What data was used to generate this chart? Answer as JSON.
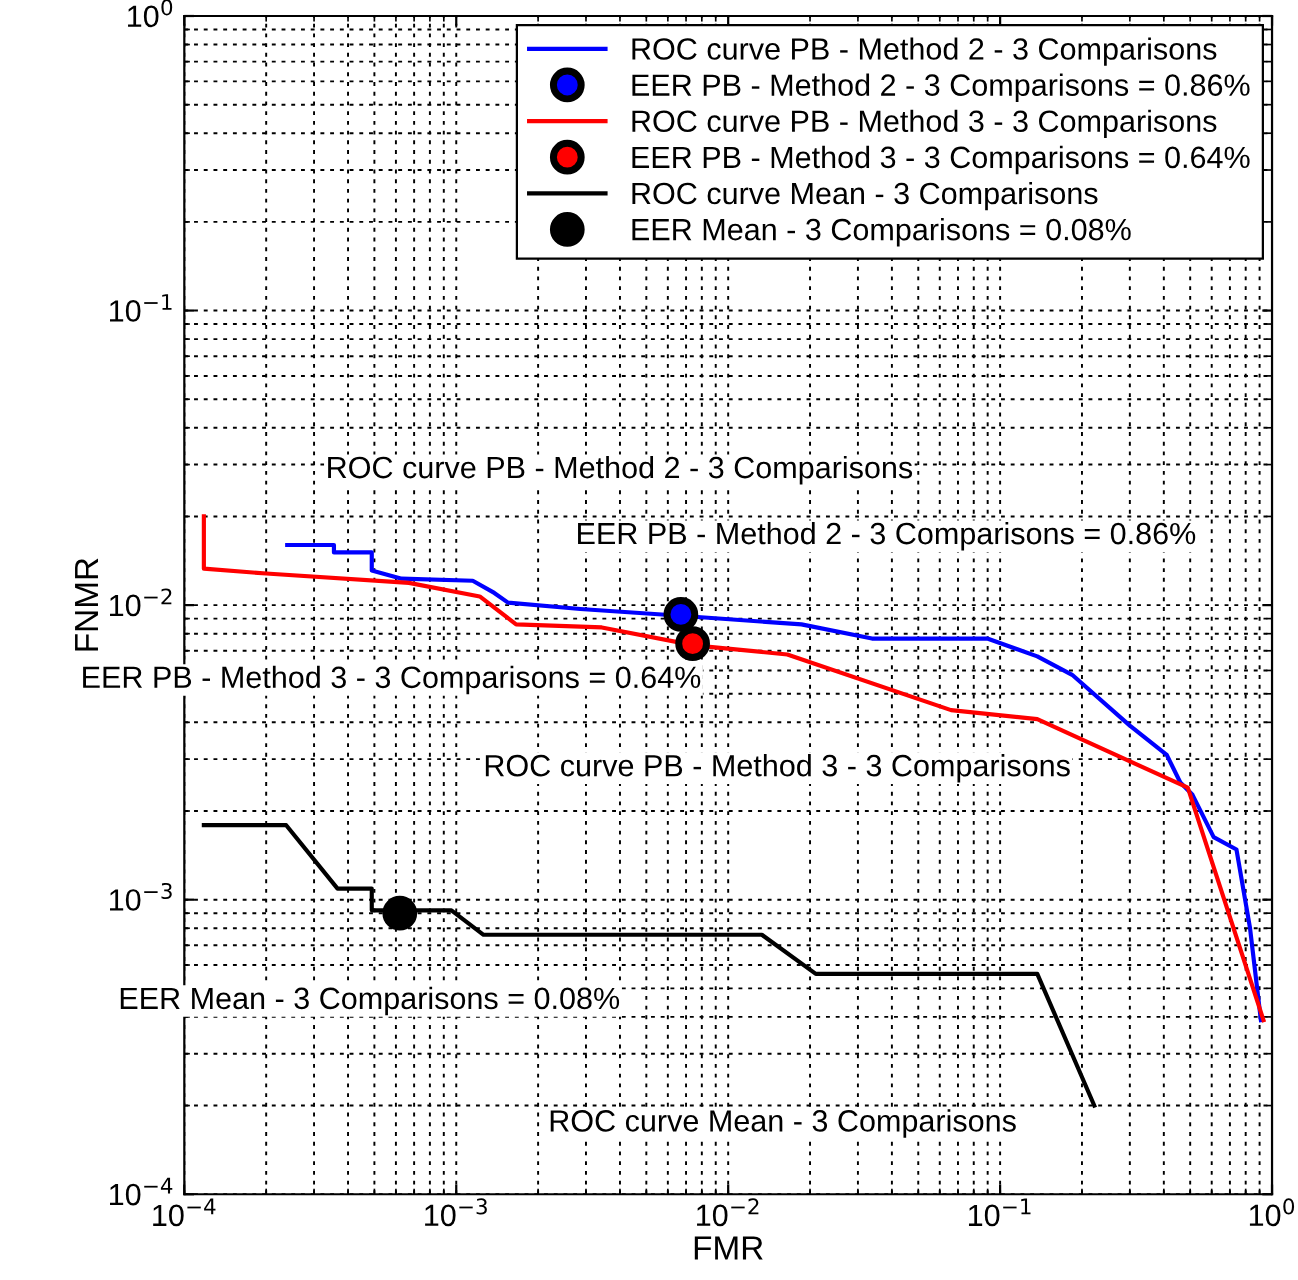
{
  "chart_data": {
    "type": "line",
    "xlabel": "FMR",
    "ylabel": "FNMR",
    "log": "xy",
    "grid": true,
    "legend": "top right",
    "xlim": [
      0.0001,
      1
    ],
    "ylim": [
      0.0001,
      1
    ],
    "xticks": [
      {
        "value": 0.0001,
        "label": "10$^{−4}$"
      },
      {
        "value": 0.001,
        "label": "10$^{−3}$"
      },
      {
        "value": 0.01,
        "label": "10$^{−2}$"
      },
      {
        "value": 0.1,
        "label": "10$^{−1}$"
      },
      {
        "value": 1,
        "label": "10$^{0}$"
      }
    ],
    "yticks": [
      {
        "value": 0.0001,
        "label": "10$^{−4}$"
      },
      {
        "value": 0.001,
        "label": "10$^{−3}$"
      },
      {
        "value": 0.01,
        "label": "10$^{−2}$"
      },
      {
        "value": 0.1,
        "label": "10$^{−1}$"
      },
      {
        "value": 1,
        "label": "10$^{0}$"
      }
    ],
    "series": [
      {
        "name": "ROC curve PB - Method 2 - 3 Comparisons",
        "color": "#0000ff",
        "x": [
          0.000239,
          0.000355,
          0.000355,
          0.000489,
          0.000489,
          0.00063,
          0.00115,
          0.00138,
          0.00155,
          0.00286,
          0.00667,
          0.0186,
          0.0338,
          0.0897,
          0.137,
          0.184,
          0.3,
          0.41,
          0.46,
          0.51,
          0.61,
          0.74,
          0.83,
          0.91
        ],
        "values": [
          0.016,
          0.016,
          0.0151,
          0.0151,
          0.0131,
          0.0123,
          0.0121,
          0.011,
          0.0102,
          0.0097,
          0.0092,
          0.0086,
          0.0077,
          0.0077,
          0.0067,
          0.0058,
          0.0039,
          0.0031,
          0.0025,
          0.00227,
          0.00163,
          0.00148,
          0.0008,
          0.00039
        ]
      },
      {
        "name": "EER PB - Method 2 - 3 Comparisons = 0.86%",
        "type": "scatter",
        "marker": "circle",
        "color": "#0000ff",
        "x": [
          0.0067
        ],
        "values": [
          0.0093
        ]
      },
      {
        "name": "ROC curve PB - Method 3 - 3 Comparisons",
        "color": "#ff0000",
        "x": [
          0.000118,
          0.000118,
          0.0002,
          0.00067,
          0.00122,
          0.00166,
          0.00343,
          0.0075,
          0.0165,
          0.066,
          0.137,
          0.49,
          0.93
        ],
        "values": [
          0.02,
          0.0133,
          0.0128,
          0.0119,
          0.0107,
          0.0086,
          0.0084,
          0.0073,
          0.0068,
          0.0044,
          0.0041,
          0.0024,
          0.00039
        ]
      },
      {
        "name": "EER PB - Method 3 - 3 Comparisons = 0.64%",
        "type": "scatter",
        "marker": "circle",
        "color": "#ff0000",
        "x": [
          0.0074
        ],
        "values": [
          0.0074
        ]
      },
      {
        "name": "ROC curve Mean - 3 Comparisons",
        "color": "#000000",
        "x": [
          0.000118,
          0.000237,
          0.000366,
          0.000489,
          0.000489,
          0.00096,
          0.00126,
          0.0133,
          0.021,
          0.137,
          0.222
        ],
        "values": [
          0.00179,
          0.00179,
          0.00109,
          0.00109,
          0.00092,
          0.00092,
          0.00076,
          0.00076,
          0.00056,
          0.00056,
          0.0002
        ]
      },
      {
        "name": "EER Mean - 3 Comparisons = 0.08%",
        "type": "scatter",
        "marker": "circle",
        "color": "#000000",
        "x": [
          0.00062
        ],
        "values": [
          0.0009
        ]
      }
    ],
    "annotations": [
      "ROC curve PB - Method 2 - 3 Comparisons",
      "EER PB - Method 2 - 3 Comparisons = 0.86%",
      "EER PB - Method 3 - 3 Comparisons = 0.64%",
      "ROC curve PB - Method 3 - 3 Comparisons",
      "EER Mean - 3 Comparisons = 0.08%",
      "ROC curve Mean - 3 Comparisons"
    ]
  }
}
